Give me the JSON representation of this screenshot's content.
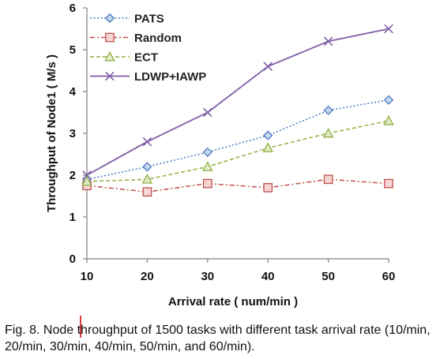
{
  "chart_data": {
    "type": "line",
    "title": "",
    "xlabel": "Arrival rate ( num/min )",
    "ylabel": "Throughput of Node1 ( M/s )",
    "x": [
      10,
      20,
      30,
      40,
      50,
      60
    ],
    "x_tick_labels": [
      "10",
      "20",
      "30",
      "40",
      "50",
      "60"
    ],
    "y_tick_labels": [
      "0",
      "1",
      "2",
      "3",
      "4",
      "5",
      "6"
    ],
    "xlim": [
      10,
      60
    ],
    "ylim": [
      0,
      6
    ],
    "grid": false,
    "legend_position": "top-left",
    "series": [
      {
        "name": "PATS",
        "values": [
          1.9,
          2.2,
          2.55,
          2.95,
          3.55,
          3.8
        ],
        "color": "#4a78c0",
        "line_style": "dotted",
        "marker": "diamond"
      },
      {
        "name": "Random",
        "values": [
          1.75,
          1.6,
          1.8,
          1.7,
          1.9,
          1.8
        ],
        "color": "#c0504d",
        "line_style": "dash-dot",
        "marker": "square"
      },
      {
        "name": "ECT",
        "values": [
          1.85,
          1.9,
          2.2,
          2.65,
          3.0,
          3.3
        ],
        "color": "#8db03e",
        "line_style": "dashed",
        "marker": "triangle"
      },
      {
        "name": "LDWP+IAWP",
        "values": [
          2.0,
          2.8,
          3.5,
          4.6,
          5.2,
          5.5
        ],
        "color": "#7f5ea8",
        "line_style": "solid",
        "marker": "x"
      }
    ]
  },
  "caption": {
    "text": "Fig. 8. Node throughput of 1500 tasks with different task arrival rate (10/min, 20/min, 30/min, 40/min, 50/min, and 60/min)."
  }
}
